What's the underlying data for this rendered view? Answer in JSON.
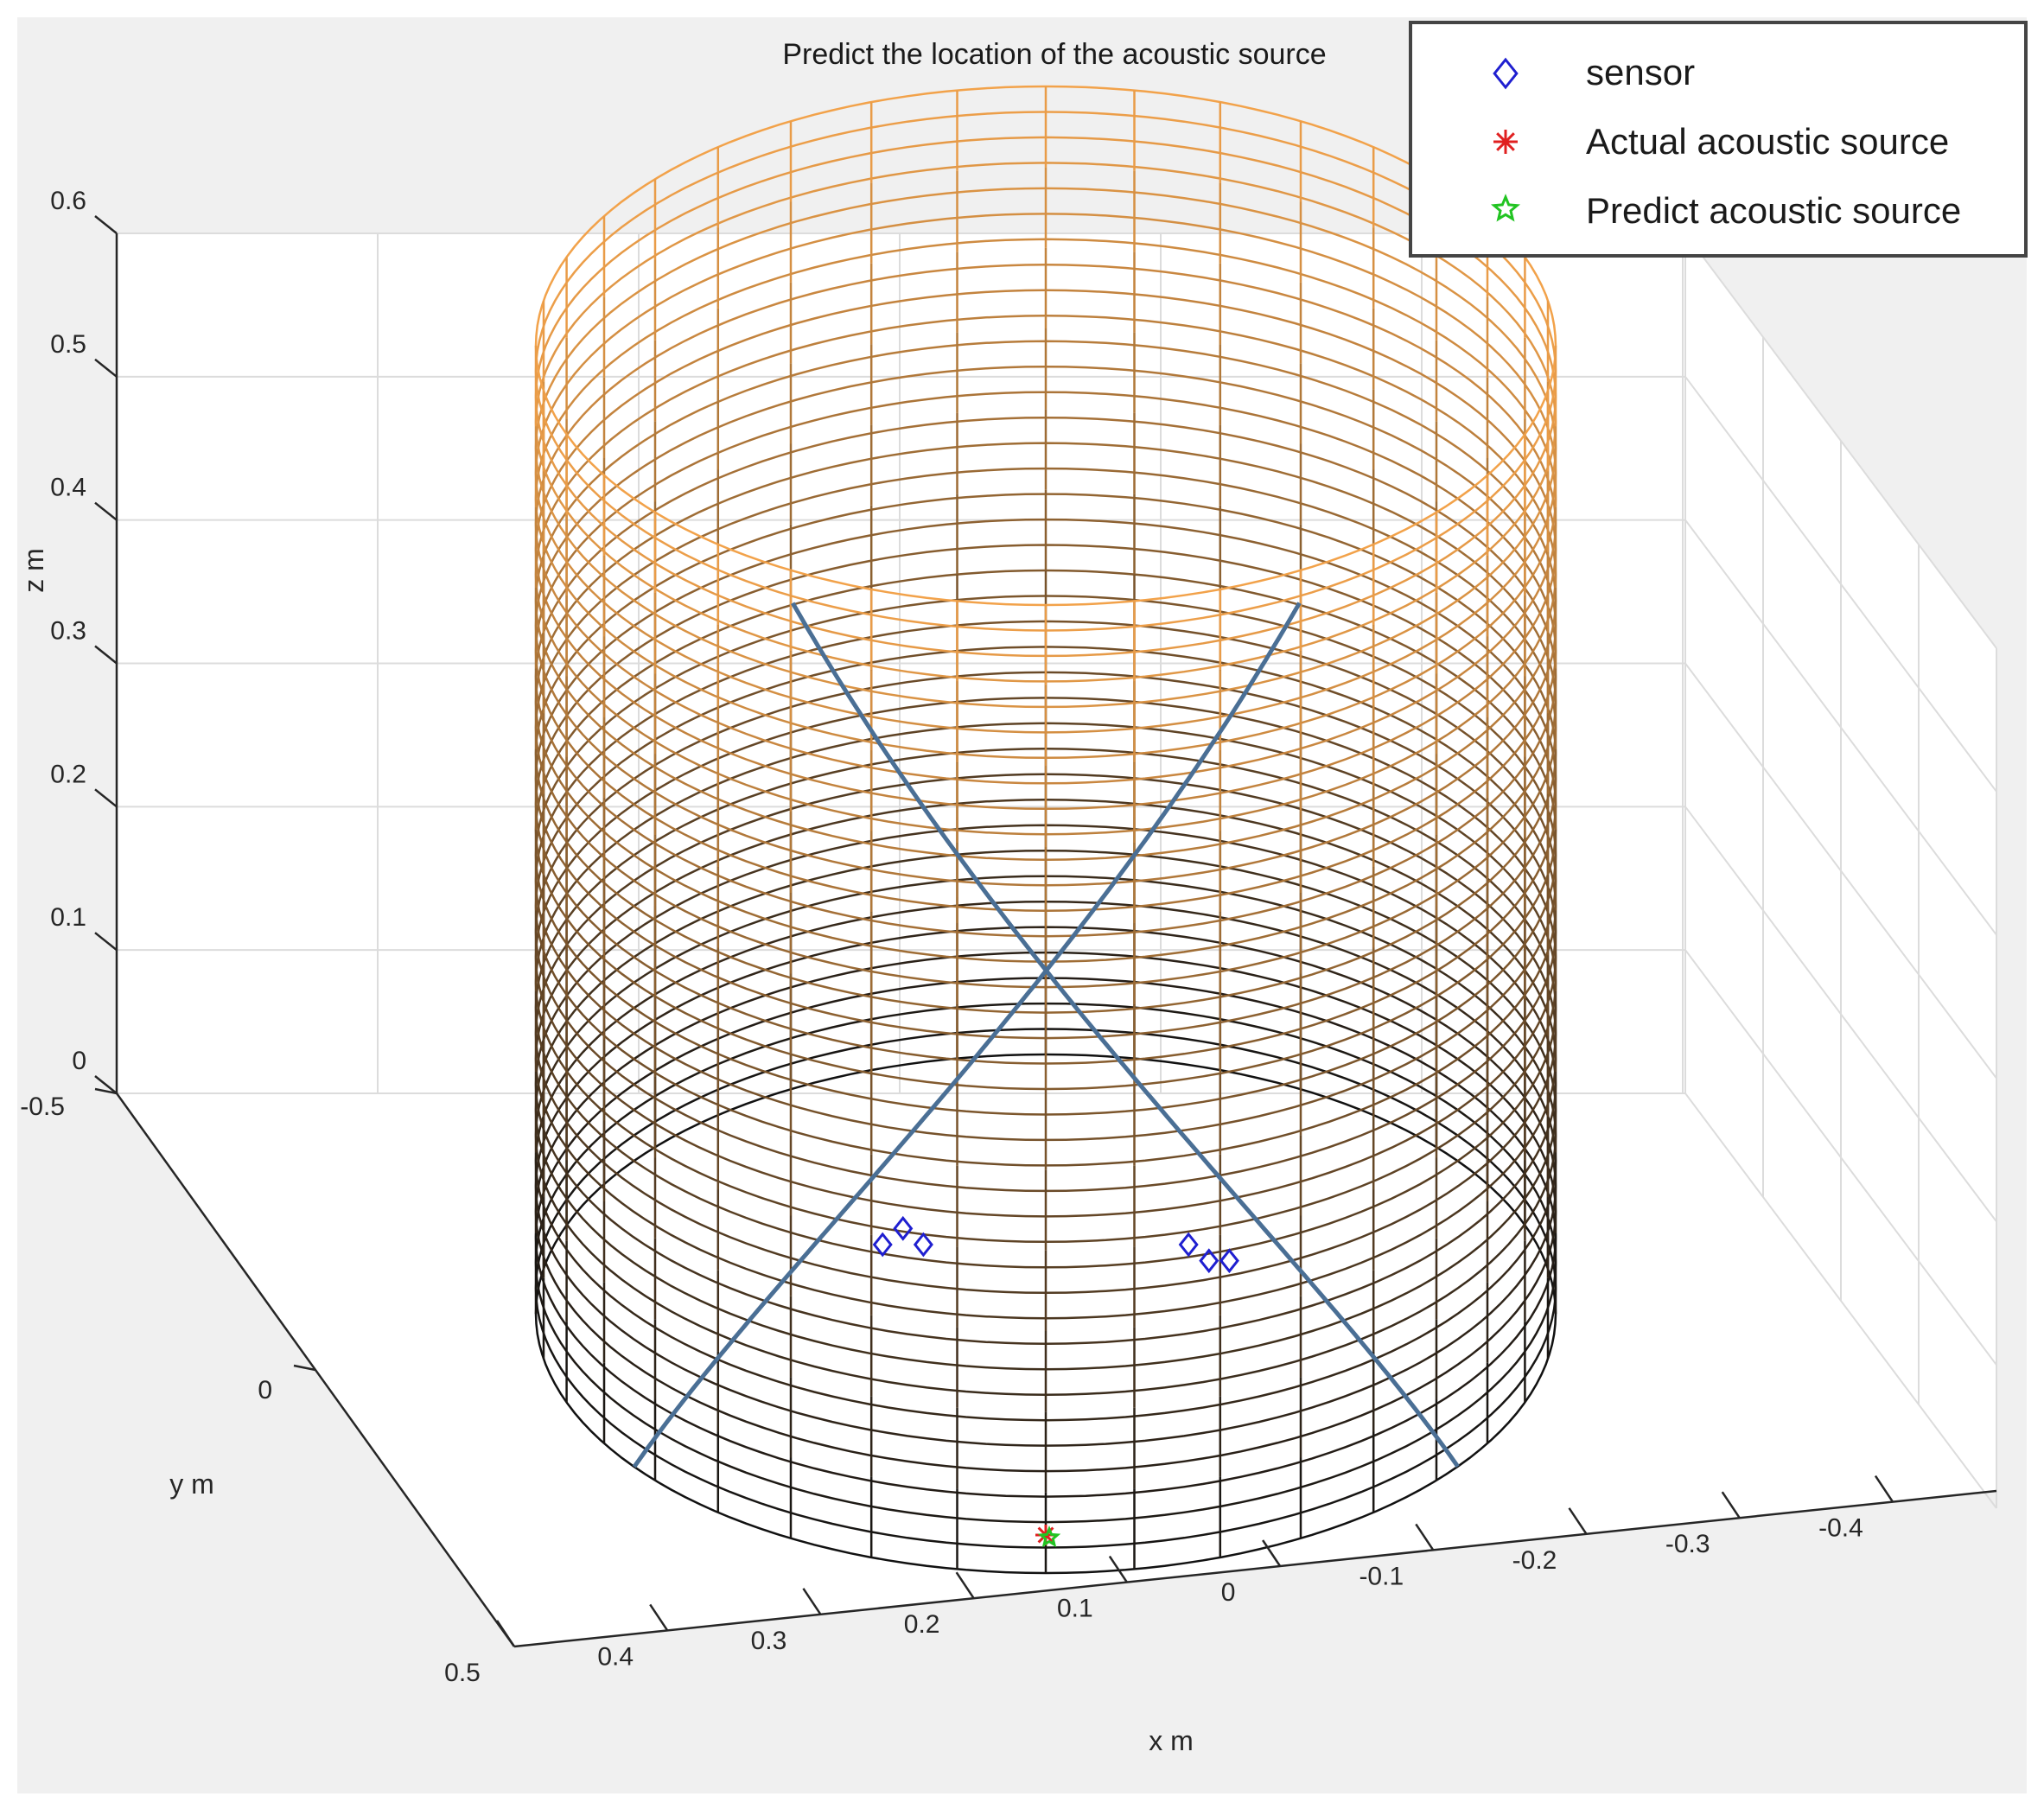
{
  "chart_data": {
    "type": "scatter3d",
    "title": "Predict the location of the acoustic source",
    "xlabel": "x m",
    "ylabel": "y m",
    "zlabel": "z m",
    "xlim": [
      -0.5,
      0.5
    ],
    "ylim": [
      -0.5,
      0.5
    ],
    "zlim": [
      0,
      0.6
    ],
    "x_ticks": [
      "0.5",
      "0.4",
      "0.3",
      "0.2",
      "0.1",
      "0",
      "-0.1",
      "-0.2",
      "-0.3",
      "-0.4"
    ],
    "y_ticks": [
      "-0.5",
      "0"
    ],
    "z_ticks": [
      "0",
      "0.1",
      "0.2",
      "0.3",
      "0.4",
      "0.5",
      "0.6"
    ],
    "grid": true,
    "legend_position": "top-right",
    "legend": [
      {
        "label": "sensor",
        "marker": "diamond",
        "color": "#1f1fd0"
      },
      {
        "label": "Actual acoustic source",
        "marker": "asterisk",
        "color": "#e02020"
      },
      {
        "label": "Predict acoustic source",
        "marker": "pentagram",
        "color": "#22c422"
      }
    ],
    "cylinder": {
      "radius": 0.5,
      "height": 0.6,
      "color_top": "#f2a24a",
      "color_bottom": "#111111"
    },
    "helices_color": "#4a6f95",
    "series": [
      {
        "name": "sensor",
        "points": [
          [
            0.16,
            0.52,
            0.21
          ],
          [
            0.14,
            0.52,
            0.22
          ],
          [
            0.12,
            0.52,
            0.21
          ],
          [
            -0.14,
            0.52,
            0.21
          ],
          [
            -0.16,
            0.52,
            0.2
          ],
          [
            -0.18,
            0.52,
            0.2
          ]
        ]
      },
      {
        "name": "Actual acoustic source",
        "points": [
          [
            0.0,
            0.52,
            0.03
          ]
        ]
      },
      {
        "name": "Predict acoustic source",
        "points": [
          [
            0.0,
            0.52,
            0.03
          ]
        ]
      }
    ]
  }
}
